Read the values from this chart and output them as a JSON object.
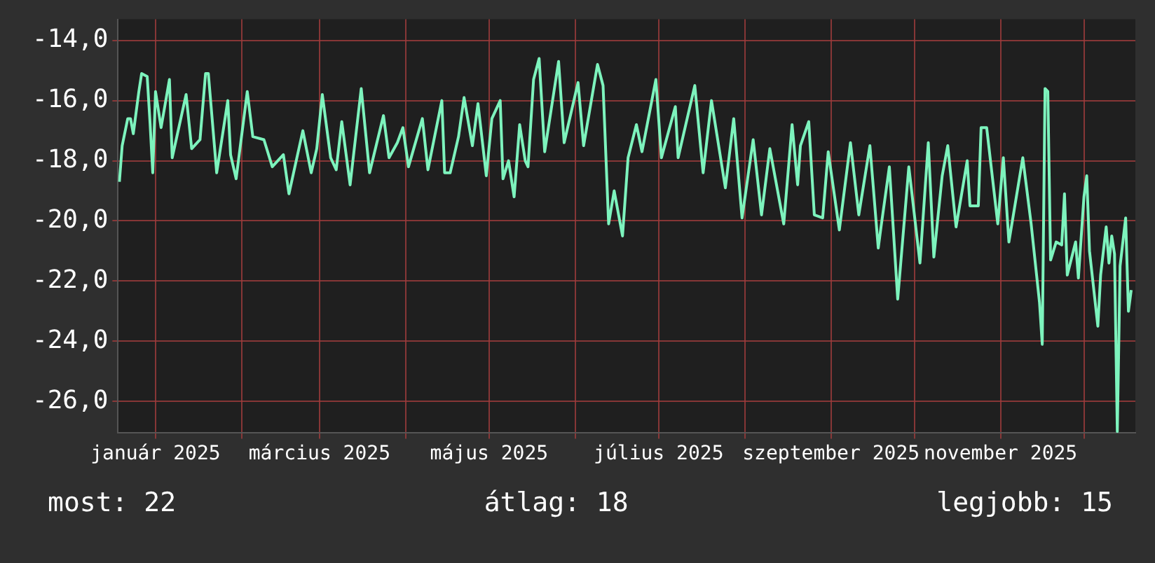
{
  "chart_data": {
    "type": "line",
    "legend": false,
    "grid": true,
    "marker": "none",
    "line_style": "solid",
    "annotations": [
      "most: 22",
      "átlag: 18",
      "legjobb: 15"
    ],
    "xlim": [
      "2024-12-18T12:00",
      "2025-12-19T12:00"
    ],
    "xticks": [
      {
        "value": "2025-01-01",
        "label": "január 2025"
      },
      {
        "value": "2025-02-01",
        "label": null
      },
      {
        "value": "2025-03-01",
        "label": "március 2025"
      },
      {
        "value": "2025-04-01",
        "label": null
      },
      {
        "value": "2025-05-01",
        "label": "május 2025"
      },
      {
        "value": "2025-06-01",
        "label": null
      },
      {
        "value": "2025-07-01",
        "label": "július 2025"
      },
      {
        "value": "2025-08-01",
        "label": null
      },
      {
        "value": "2025-09-01",
        "label": "szeptember 2025"
      },
      {
        "value": "2025-10-01",
        "label": null
      },
      {
        "value": "2025-11-01",
        "label": "november 2025"
      },
      {
        "value": "2025-12-01",
        "label": null
      }
    ],
    "ylim": [
      -27.05,
      -13.3
    ],
    "yticks": [
      {
        "value": -26,
        "label": "-26,0"
      },
      {
        "value": -24,
        "label": "-24,0"
      },
      {
        "value": -22,
        "label": "-22,0"
      },
      {
        "value": -20,
        "label": "-20,0"
      },
      {
        "value": -18,
        "label": "-18,0"
      },
      {
        "value": -16,
        "label": "-16,0"
      },
      {
        "value": -14,
        "label": "-14,0"
      }
    ],
    "x": [
      "2024-12-19",
      "2024-12-20",
      "2024-12-22",
      "2024-12-23",
      "2024-12-24",
      "2024-12-26",
      "2024-12-27",
      "2024-12-29",
      "2024-12-30",
      "2024-12-31",
      "2025-01-01",
      "2025-01-03",
      "2025-01-06",
      "2025-01-07",
      "2025-01-12",
      "2025-01-14",
      "2025-01-17",
      "2025-01-19",
      "2025-01-20",
      "2025-01-23",
      "2025-01-27",
      "2025-01-28",
      "2025-01-30",
      "2025-02-03",
      "2025-02-05",
      "2025-02-09",
      "2025-02-12",
      "2025-02-16",
      "2025-02-18",
      "2025-02-23",
      "2025-02-26",
      "2025-02-28",
      "2025-03-02",
      "2025-03-05",
      "2025-03-07",
      "2025-03-09",
      "2025-03-12",
      "2025-03-16",
      "2025-03-19",
      "2025-03-24",
      "2025-03-26",
      "2025-03-29",
      "2025-03-31",
      "2025-04-02",
      "2025-04-07",
      "2025-04-09",
      "2025-04-14",
      "2025-04-15",
      "2025-04-17",
      "2025-04-20",
      "2025-04-22",
      "2025-04-25",
      "2025-04-27",
      "2025-04-30",
      "2025-05-02",
      "2025-05-05",
      "2025-05-06",
      "2025-05-08",
      "2025-05-10",
      "2025-05-12",
      "2025-05-14",
      "2025-05-15",
      "2025-05-17",
      "2025-05-19",
      "2025-05-21",
      "2025-05-26",
      "2025-05-28",
      "2025-06-02",
      "2025-06-04",
      "2025-06-09",
      "2025-06-11",
      "2025-06-13",
      "2025-06-15",
      "2025-06-18",
      "2025-06-20",
      "2025-06-23",
      "2025-06-25",
      "2025-06-30",
      "2025-07-02",
      "2025-07-07",
      "2025-07-08",
      "2025-07-14",
      "2025-07-17",
      "2025-07-20",
      "2025-07-25",
      "2025-07-28",
      "2025-07-31",
      "2025-08-04",
      "2025-08-07",
      "2025-08-10",
      "2025-08-15",
      "2025-08-18",
      "2025-08-20",
      "2025-08-21",
      "2025-08-24",
      "2025-08-26",
      "2025-08-29",
      "2025-08-31",
      "2025-09-04",
      "2025-09-08",
      "2025-09-11",
      "2025-09-15",
      "2025-09-18",
      "2025-09-19",
      "2025-09-22",
      "2025-09-25",
      "2025-09-29",
      "2025-10-03",
      "2025-10-06",
      "2025-10-08",
      "2025-10-11",
      "2025-10-13",
      "2025-10-16",
      "2025-10-20",
      "2025-10-21",
      "2025-10-24",
      "2025-10-25",
      "2025-10-27",
      "2025-10-31",
      "2025-11-02",
      "2025-11-04",
      "2025-11-09",
      "2025-11-12",
      "2025-11-15",
      "2025-11-16",
      "2025-11-17",
      "2025-11-18",
      "2025-11-19",
      "2025-11-21",
      "2025-11-23",
      "2025-11-24",
      "2025-11-25",
      "2025-11-28",
      "2025-11-29",
      "2025-12-01",
      "2025-12-02",
      "2025-12-03",
      "2025-12-06",
      "2025-12-07",
      "2025-12-09",
      "2025-12-10",
      "2025-12-11",
      "2025-12-12",
      "2025-12-13",
      "2025-12-14",
      "2025-12-16",
      "2025-12-17",
      "2025-12-18"
    ],
    "series": [
      {
        "color": "#7df3bd",
        "values": [
          -18.7,
          -17.5,
          -16.6,
          -16.6,
          -17.1,
          -15.7,
          -15.1,
          -15.2,
          -16.7,
          -18.4,
          -15.7,
          -16.9,
          -15.3,
          -17.9,
          -15.8,
          -17.6,
          -17.3,
          -15.1,
          -15.1,
          -18.4,
          -16.0,
          -17.8,
          -18.6,
          -15.7,
          -17.2,
          -17.3,
          -18.2,
          -17.8,
          -19.1,
          -17.0,
          -18.4,
          -17.6,
          -15.8,
          -17.9,
          -18.3,
          -16.7,
          -18.8,
          -15.6,
          -18.4,
          -16.5,
          -17.9,
          -17.4,
          -16.9,
          -18.2,
          -16.6,
          -18.3,
          -16.0,
          -18.4,
          -18.4,
          -17.2,
          -15.9,
          -17.5,
          -16.1,
          -18.5,
          -16.6,
          -16.0,
          -18.6,
          -18.0,
          -19.2,
          -16.8,
          -18.0,
          -18.2,
          -15.3,
          -14.6,
          -17.7,
          -14.7,
          -17.4,
          -15.4,
          -17.5,
          -14.8,
          -15.5,
          -20.1,
          -19.0,
          -20.5,
          -17.9,
          -16.8,
          -17.7,
          -15.3,
          -17.9,
          -16.2,
          -17.9,
          -15.5,
          -18.4,
          -16.0,
          -18.9,
          -16.6,
          -19.9,
          -17.3,
          -19.8,
          -17.6,
          -20.1,
          -16.8,
          -18.8,
          -17.5,
          -16.7,
          -19.8,
          -19.9,
          -17.7,
          -20.3,
          -17.4,
          -19.8,
          -17.5,
          -20.9,
          -20.2,
          -18.2,
          -22.6,
          -18.2,
          -21.4,
          -17.4,
          -21.2,
          -18.5,
          -17.5,
          -20.2,
          -18.0,
          -19.5,
          -19.5,
          -16.9,
          -16.9,
          -20.1,
          -17.9,
          -20.7,
          -17.9,
          -20.1,
          -22.7,
          -24.1,
          -15.6,
          -15.7,
          -21.3,
          -20.7,
          -20.8,
          -19.1,
          -21.8,
          -20.7,
          -21.9,
          -19.2,
          -18.5,
          -21.0,
          -23.5,
          -21.8,
          -20.2,
          -21.4,
          -20.5,
          -21.1,
          -27.0,
          -21.5,
          -19.9,
          -23.0,
          -22.3
        ]
      }
    ]
  }
}
